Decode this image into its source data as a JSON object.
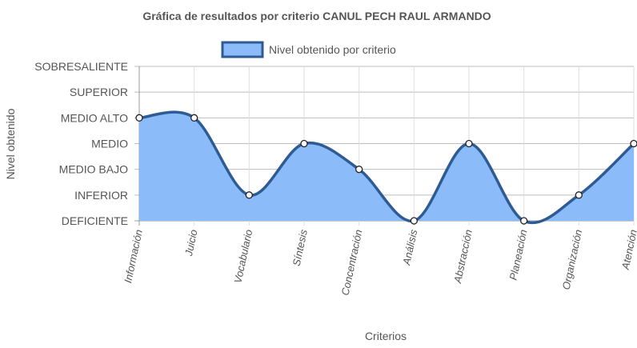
{
  "chart_data": {
    "type": "area",
    "title": "Gráfica de resultados por criterio  CANUL PECH RAUL ARMANDO",
    "xlabel": "Criterios",
    "ylabel": "Nivel obtenido",
    "categories": [
      "Información",
      "Juicio",
      "Vocabulario",
      "Síntesis",
      "Concentración",
      "Análisis",
      "Abstracción",
      "Planeación",
      "Organización",
      "Atención"
    ],
    "y_levels": [
      "DEFICIENTE",
      "INFERIOR",
      "MEDIO BAJO",
      "MEDIO",
      "MEDIO ALTO",
      "SUPERIOR",
      "SOBRESALIENTE"
    ],
    "ylim": [
      0,
      6
    ],
    "series": [
      {
        "name": "Nivel obtenido por criterio",
        "values": [
          4,
          4,
          1,
          3,
          2,
          0,
          3,
          0,
          1,
          3
        ],
        "fill_color": "#8bbbf8",
        "line_color": "#2e5b94"
      }
    ],
    "legend_position": "top",
    "grid": true
  }
}
